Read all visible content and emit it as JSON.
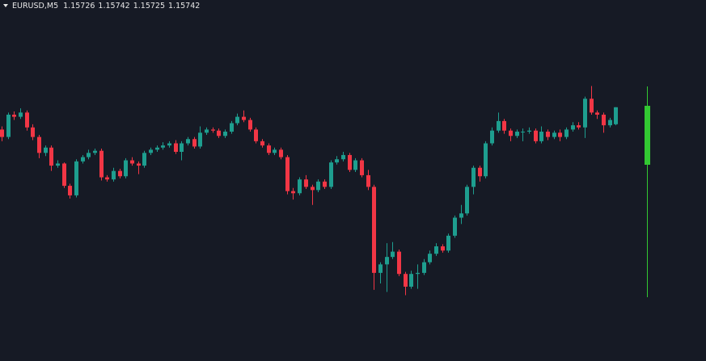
{
  "chart_data": {
    "type": "candlestick",
    "title": "EURUSD,M5",
    "open": [
      1.15721,
      1.15714,
      1.15735,
      1.15733,
      1.15737,
      1.15723,
      1.15714,
      1.15699,
      1.15704,
      1.15687,
      1.15689,
      1.15668,
      1.15659,
      1.15691,
      1.15695,
      1.15699,
      1.15701,
      1.15676,
      1.15674,
      1.15682,
      1.15677,
      1.15692,
      1.15689,
      1.15687,
      1.15699,
      1.15702,
      1.15704,
      1.15706,
      1.15708,
      1.157,
      1.15708,
      1.15712,
      1.15705,
      1.15718,
      1.15721,
      1.1572,
      1.15715,
      1.15719,
      1.15727,
      1.15733,
      1.1573,
      1.15721,
      1.1571,
      1.15706,
      1.15699,
      1.15702,
      1.15695,
      1.15663,
      1.15661,
      1.15674,
      1.15667,
      1.15664,
      1.15672,
      1.15667,
      1.1569,
      1.15693,
      1.15697,
      1.15683,
      1.15692,
      1.15678,
      1.15667,
      1.15586,
      1.15594,
      1.15601,
      1.15606,
      1.15585,
      1.15573,
      1.15585,
      1.15586,
      1.15596,
      1.15604,
      1.15611,
      1.15607,
      1.15621,
      1.15638,
      1.15642,
      1.15667,
      1.15685,
      1.15677,
      1.15708,
      1.1572,
      1.15729,
      1.1572,
      1.15715,
      1.15719,
      1.15719,
      1.1572,
      1.1571,
      1.15719,
      1.15714,
      1.15718,
      1.15714,
      1.15721,
      1.15725,
      1.15723,
      1.1575,
      1.15737,
      1.15735,
      1.15725,
      1.15726
    ],
    "high": [
      1.15724,
      1.15737,
      1.15738,
      1.15741,
      1.15739,
      1.15726,
      1.15716,
      1.15706,
      1.15706,
      1.15692,
      1.1569,
      1.1567,
      1.15693,
      1.15697,
      1.15702,
      1.15703,
      1.15703,
      1.15678,
      1.15685,
      1.15684,
      1.15694,
      1.15695,
      1.15691,
      1.15701,
      1.15704,
      1.15706,
      1.15709,
      1.1571,
      1.15711,
      1.1571,
      1.15714,
      1.15714,
      1.15724,
      1.15723,
      1.15723,
      1.15722,
      1.15721,
      1.15729,
      1.15736,
      1.15739,
      1.15732,
      1.15723,
      1.15712,
      1.15708,
      1.15704,
      1.15704,
      1.15697,
      1.15666,
      1.15676,
      1.15678,
      1.15669,
      1.15674,
      1.15674,
      1.15692,
      1.15696,
      1.157,
      1.15699,
      1.15694,
      1.15694,
      1.15683,
      1.15669,
      1.15596,
      1.15614,
      1.15615,
      1.15608,
      1.15587,
      1.15588,
      1.15594,
      1.15599,
      1.15607,
      1.15614,
      1.15613,
      1.15623,
      1.1564,
      1.1565,
      1.15669,
      1.15687,
      1.15687,
      1.1571,
      1.15723,
      1.15737,
      1.15731,
      1.15722,
      1.15721,
      1.15722,
      1.15723,
      1.15722,
      1.15724,
      1.15721,
      1.1572,
      1.15721,
      1.15723,
      1.15728,
      1.15728,
      1.15752,
      1.15762,
      1.15739,
      1.15737,
      1.15732,
      1.15742
    ],
    "low": [
      1.1571,
      1.15712,
      1.1573,
      1.15731,
      1.1572,
      1.15711,
      1.15694,
      1.15696,
      1.15682,
      1.15685,
      1.15666,
      1.15656,
      1.15657,
      1.15689,
      1.15693,
      1.15697,
      1.15673,
      1.15672,
      1.15672,
      1.15675,
      1.15675,
      1.15687,
      1.15679,
      1.15685,
      1.15697,
      1.157,
      1.15702,
      1.15704,
      1.15698,
      1.15692,
      1.15706,
      1.15703,
      1.15703,
      1.15716,
      1.15718,
      1.15713,
      1.15713,
      1.15717,
      1.15725,
      1.15728,
      1.15719,
      1.15708,
      1.15704,
      1.15697,
      1.15697,
      1.15693,
      1.1566,
      1.15655,
      1.15659,
      1.15665,
      1.1565,
      1.15662,
      1.15665,
      1.15665,
      1.15688,
      1.15691,
      1.15681,
      1.15681,
      1.15676,
      1.15664,
      1.1557,
      1.15576,
      1.15568,
      1.15599,
      1.15583,
      1.15565,
      1.15571,
      1.15571,
      1.15584,
      1.15594,
      1.15602,
      1.15605,
      1.15605,
      1.15619,
      1.15632,
      1.1564,
      1.1566,
      1.15672,
      1.15675,
      1.15706,
      1.15718,
      1.15717,
      1.1571,
      1.15713,
      1.1571,
      1.15717,
      1.15708,
      1.15708,
      1.15711,
      1.15712,
      1.1571,
      1.15712,
      1.15719,
      1.15721,
      1.15713,
      1.15735,
      1.15731,
      1.15718,
      1.15723,
      1.15725
    ],
    "close": [
      1.15714,
      1.15735,
      1.15733,
      1.15737,
      1.15723,
      1.15714,
      1.15699,
      1.15704,
      1.15687,
      1.15689,
      1.15668,
      1.15659,
      1.15691,
      1.15695,
      1.15699,
      1.15701,
      1.15676,
      1.15674,
      1.15682,
      1.15677,
      1.15692,
      1.15689,
      1.15687,
      1.15699,
      1.15702,
      1.15704,
      1.15706,
      1.15708,
      1.157,
      1.15708,
      1.15712,
      1.15705,
      1.15718,
      1.15721,
      1.1572,
      1.15715,
      1.15719,
      1.15727,
      1.15733,
      1.1573,
      1.15721,
      1.1571,
      1.15706,
      1.15699,
      1.15702,
      1.15695,
      1.15663,
      1.15661,
      1.15674,
      1.15667,
      1.15664,
      1.15672,
      1.15667,
      1.1569,
      1.15693,
      1.15697,
      1.15683,
      1.15692,
      1.15678,
      1.15667,
      1.15586,
      1.15594,
      1.15601,
      1.15606,
      1.15585,
      1.15573,
      1.15585,
      1.15586,
      1.15596,
      1.15604,
      1.15611,
      1.15607,
      1.15621,
      1.15638,
      1.15642,
      1.15667,
      1.15685,
      1.15677,
      1.15708,
      1.1572,
      1.15729,
      1.1572,
      1.15715,
      1.15719,
      1.15719,
      1.1572,
      1.1571,
      1.15719,
      1.15714,
      1.15718,
      1.15714,
      1.15721,
      1.15725,
      1.15723,
      1.1575,
      1.15737,
      1.15735,
      1.15725,
      1.1573,
      1.15742
    ],
    "ylim": [
      1.15503,
      1.15843
    ],
    "up_color": "#1e9e8f",
    "down_color": "#f23645"
  }
}
